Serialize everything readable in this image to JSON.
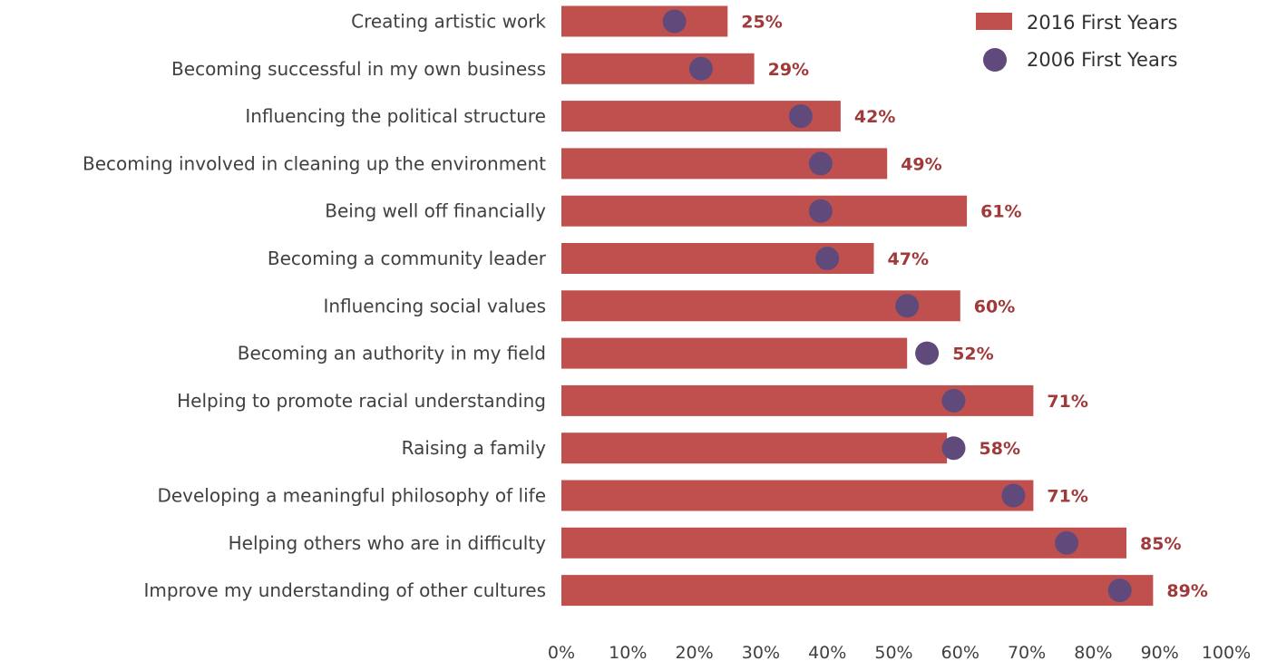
{
  "chart_data": {
    "type": "bar",
    "orientation": "horizontal",
    "categories": [
      "Creating artistic work",
      "Becoming successful in my own business",
      "Influencing the political structure",
      "Becoming involved in cleaning up the environment",
      "Being well off financially",
      "Becoming a community leader",
      "Influencing social values",
      "Becoming an authority in my field",
      "Helping to promote racial understanding",
      "Raising a family",
      "Developing a meaningful philosophy of life",
      "Helping others who are in difficulty",
      "Improve my understanding of other cultures"
    ],
    "series": [
      {
        "name": "2016 First Years",
        "mark": "bar",
        "color": "#c0504d",
        "values": [
          25,
          29,
          42,
          49,
          61,
          47,
          60,
          52,
          71,
          58,
          71,
          85,
          89
        ],
        "labels": [
          "25%",
          "29%",
          "42%",
          "49%",
          "61%",
          "47%",
          "60%",
          "52%",
          "71%",
          "58%",
          "71%",
          "85%",
          "89%"
        ]
      },
      {
        "name": "2006 First Years",
        "mark": "dot",
        "color": "#604a7b",
        "values": [
          17,
          21,
          36,
          39,
          39,
          40,
          52,
          55,
          59,
          59,
          68,
          76,
          84
        ]
      }
    ],
    "x_ticks": [
      "0%",
      "10%",
      "20%",
      "30%",
      "40%",
      "50%",
      "60%",
      "70%",
      "80%",
      "90%",
      "100%"
    ],
    "xlim": [
      0,
      100
    ],
    "grid": false,
    "legend_position": "top-right"
  }
}
